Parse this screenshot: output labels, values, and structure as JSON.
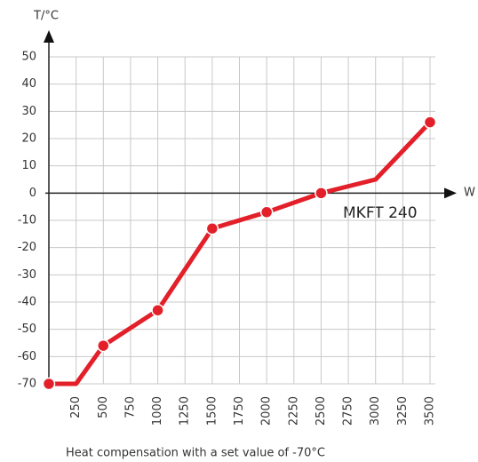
{
  "chart_data": {
    "type": "line",
    "y_label": "T/°C",
    "x_label": "W",
    "caption": "Heat compensation with a set value of -70°C",
    "x": [
      0,
      250,
      500,
      1000,
      1500,
      2000,
      2500,
      3000,
      3500
    ],
    "series": [
      {
        "name": "MKFT 240",
        "color": "#e3202a",
        "values": [
          -70,
          -70,
          -56,
          -43,
          -13,
          -7,
          0,
          5,
          26
        ],
        "markers": [
          true,
          false,
          true,
          true,
          true,
          true,
          true,
          false,
          true
        ]
      }
    ],
    "xlim": [
      0,
      3500
    ],
    "xticks": [
      250,
      500,
      750,
      1000,
      1250,
      1500,
      1750,
      2000,
      2250,
      2500,
      2750,
      3000,
      3250,
      3500
    ],
    "ylim": [
      -70,
      50
    ],
    "yticks": [
      -70,
      -60,
      -50,
      -40,
      -30,
      -20,
      -10,
      0,
      10,
      20,
      30,
      40,
      50
    ],
    "grid": true
  }
}
